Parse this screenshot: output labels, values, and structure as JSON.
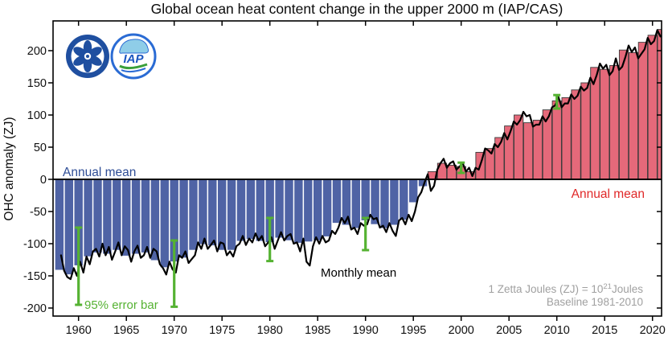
{
  "annotations": {
    "annual_mean_left": "Annual mean",
    "annual_mean_right": "Annual mean",
    "monthly_mean": "Monthly mean",
    "error_bar_label": "95% error bar",
    "unit_note_prefix": "1 Zetta Joules (ZJ) = 10",
    "unit_note_exp": "21",
    "unit_note_suffix": "Joules",
    "baseline_note": "Baseline 1981-2010"
  },
  "logos": {
    "iap_label": "IAP"
  },
  "colors": {
    "annual_neg_fill": "#4f63a5",
    "annual_pos_fill": "#e5697a",
    "annual_pos_edge": "#3a3a3a",
    "monthly_line": "#000000",
    "error_bar_green": "#55b232",
    "label_blue": "#2e4d96",
    "label_red": "#e02828",
    "note_gray": "#a0a0a0",
    "axis_black": "#000000",
    "cas_blue": "#1f4fa0",
    "iap_ring_blue": "#2a6bd4",
    "iap_cloud_blue": "#8fcde8",
    "iap_wave_green": "#3aa03a"
  },
  "chart_data": {
    "type": "bar+line",
    "title": "Global ocean heat content change in the upper 2000 m (IAP/CAS)",
    "xlabel": "",
    "ylabel": "OHC anomaly (ZJ)",
    "xlim": [
      1957.3,
      2020.95
    ],
    "ylim": [
      -212.5,
      246.25
    ],
    "xticks": [
      1960,
      1965,
      1970,
      1975,
      1980,
      1985,
      1990,
      1995,
      2000,
      2005,
      2010,
      2015,
      2020
    ],
    "yticks": [
      -200,
      -150,
      -100,
      -50,
      0,
      50,
      100,
      150,
      200
    ],
    "grid": false,
    "legend_position": "in-plot text annotations",
    "years": [
      1958,
      1959,
      1960,
      1961,
      1962,
      1963,
      1964,
      1965,
      1966,
      1967,
      1968,
      1969,
      1970,
      1971,
      1972,
      1973,
      1974,
      1975,
      1976,
      1977,
      1978,
      1979,
      1980,
      1981,
      1982,
      1983,
      1984,
      1985,
      1986,
      1987,
      1988,
      1989,
      1990,
      1991,
      1992,
      1993,
      1994,
      1995,
      1996,
      1997,
      1998,
      1999,
      2000,
      2001,
      2002,
      2003,
      2004,
      2005,
      2006,
      2007,
      2008,
      2009,
      2010,
      2011,
      2012,
      2013,
      2014,
      2015,
      2016,
      2017,
      2018,
      2019,
      2020,
      2021
    ],
    "annual_mean": [
      -140,
      -147,
      -133,
      -119,
      -113,
      -115,
      -109,
      -118,
      -115,
      -113,
      -125,
      -136,
      -127,
      -121,
      -109,
      -100,
      -102,
      -109,
      -109,
      -95,
      -92,
      -95,
      -97,
      -90,
      -94,
      -98,
      -96,
      -94,
      -88,
      -67,
      -70,
      -75,
      -63,
      -69,
      -75,
      -70,
      -62,
      -35,
      -10,
      12,
      25,
      22,
      20,
      12,
      42,
      48,
      65,
      83,
      100,
      88,
      92,
      108,
      122,
      127,
      139,
      150,
      174,
      171,
      177,
      201,
      197,
      213,
      224,
      233
    ],
    "monthly_mean": {
      "start_year": 1958,
      "samples_per_year": 3,
      "values": [
        -118,
        -142,
        -152,
        -155,
        -138,
        -150,
        -128,
        -145,
        -120,
        -132,
        -112,
        -108,
        -120,
        -100,
        -118,
        -105,
        -125,
        -112,
        -98,
        -118,
        -104,
        -110,
        -128,
        -112,
        -103,
        -122,
        -118,
        -105,
        -122,
        -108,
        -112,
        -132,
        -138,
        -148,
        -128,
        -140,
        -145,
        -118,
        -122,
        -112,
        -130,
        -124,
        -118,
        -98,
        -108,
        -92,
        -108,
        -102,
        -95,
        -112,
        -98,
        -100,
        -118,
        -112,
        -120,
        -104,
        -100,
        -88,
        -102,
        -92,
        -98,
        -84,
        -95,
        -88,
        -104,
        -98,
        -90,
        -108,
        -95,
        -82,
        -95,
        -88,
        -85,
        -100,
        -98,
        -112,
        -92,
        -128,
        -134,
        -104,
        -90,
        -100,
        -88,
        -98,
        -95,
        -80,
        -85,
        -75,
        -60,
        -68,
        -58,
        -78,
        -75,
        -85,
        -68,
        -72,
        -70,
        -55,
        -62,
        -60,
        -75,
        -72,
        -82,
        -68,
        -80,
        -88,
        -64,
        -60,
        -70,
        -55,
        -65,
        -50,
        -28,
        -20,
        -5,
        8,
        -18,
        -10,
        15,
        25,
        32,
        18,
        25,
        28,
        15,
        20,
        25,
        12,
        18,
        5,
        18,
        15,
        30,
        48,
        45,
        40,
        55,
        50,
        58,
        72,
        62,
        75,
        90,
        85,
        92,
        105,
        98,
        100,
        82,
        85,
        85,
        98,
        90,
        98,
        112,
        115,
        128,
        112,
        118,
        118,
        132,
        125,
        130,
        144,
        138,
        142,
        158,
        148,
        162,
        180,
        172,
        178,
        162,
        168,
        188,
        170,
        175,
        190,
        208,
        198,
        205,
        188,
        195,
        202,
        220,
        210,
        215,
        232,
        222,
        225,
        240,
        235
      ]
    },
    "error_bars": [
      {
        "year": 1960,
        "lo": -195,
        "hi": -75
      },
      {
        "year": 1970,
        "lo": -198,
        "hi": -95
      },
      {
        "year": 1980,
        "lo": -127,
        "hi": -60
      },
      {
        "year": 1990,
        "lo": -110,
        "hi": -60
      },
      {
        "year": 2000,
        "lo": 10,
        "hi": 26
      },
      {
        "year": 2010,
        "lo": 110,
        "hi": 131
      }
    ]
  }
}
